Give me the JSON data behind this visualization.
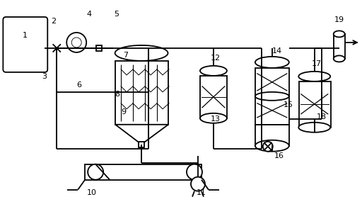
{
  "bg_color": "#ffffff",
  "lc": "#000000",
  "lw": 1.3,
  "fig_w": 5.12,
  "fig_h": 2.78,
  "dpi": 100
}
